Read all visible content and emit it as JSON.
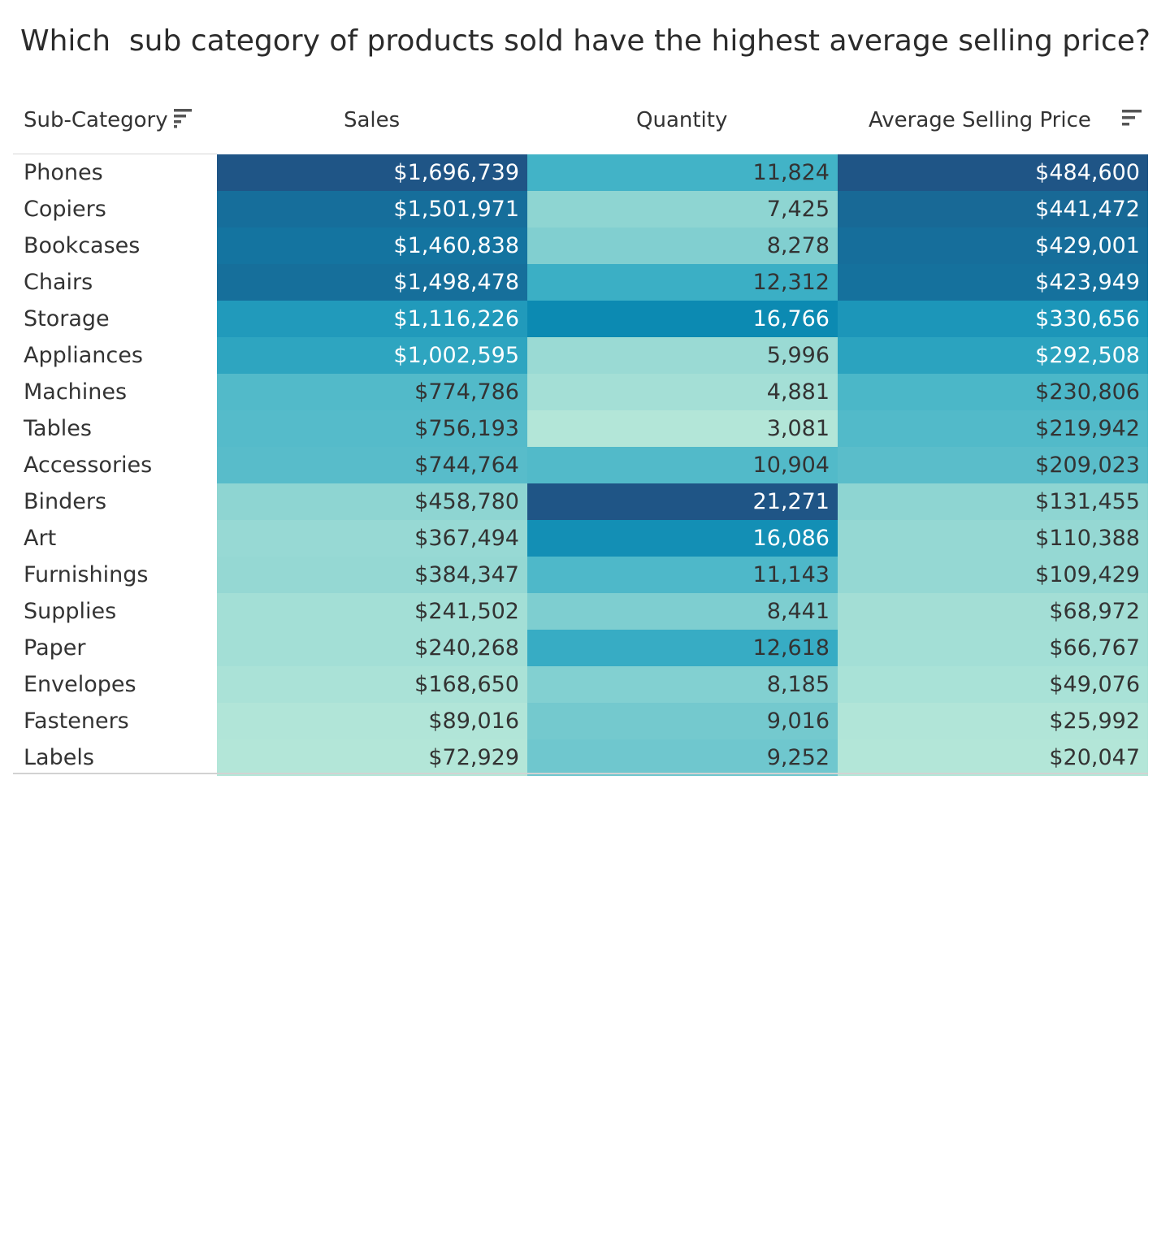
{
  "title": "Which  sub category of products sold have the highest average selling price?",
  "header": {
    "sub_category": "Sub-Category",
    "sales": "Sales",
    "quantity": "Quantity",
    "avg_price": "Average Selling Price"
  },
  "icons": {
    "sort_sub_category": "sort-descending-icon",
    "sort_avg_price": "sort-descending-icon"
  },
  "colors": {
    "scale_low": "#b3e6d8",
    "scale_high": "#1f5586",
    "text_dark": "#333333",
    "text_light": "#ffffff"
  },
  "chart_data": {
    "type": "table",
    "title": "Which  sub category of products sold have the highest average selling price?",
    "columns": [
      "Sub-Category",
      "Sales",
      "Quantity",
      "Average Selling Price"
    ],
    "sorted_by": "Average Selling Price (descending)",
    "rows": [
      {
        "name": "Phones",
        "sales": "$1,696,739",
        "quantity": "11,824",
        "asp": "$484,600",
        "sales_value": 1696739,
        "quantity_value": 11824,
        "asp_value": 484600
      },
      {
        "name": "Copiers",
        "sales": "$1,501,971",
        "quantity": "7,425",
        "asp": "$441,472",
        "sales_value": 1501971,
        "quantity_value": 7425,
        "asp_value": 441472
      },
      {
        "name": "Bookcases",
        "sales": "$1,460,838",
        "quantity": "8,278",
        "asp": "$429,001",
        "sales_value": 1460838,
        "quantity_value": 8278,
        "asp_value": 429001
      },
      {
        "name": "Chairs",
        "sales": "$1,498,478",
        "quantity": "12,312",
        "asp": "$423,949",
        "sales_value": 1498478,
        "quantity_value": 12312,
        "asp_value": 423949
      },
      {
        "name": "Storage",
        "sales": "$1,116,226",
        "quantity": "16,766",
        "asp": "$330,656",
        "sales_value": 1116226,
        "quantity_value": 16766,
        "asp_value": 330656
      },
      {
        "name": "Appliances",
        "sales": "$1,002,595",
        "quantity": "5,996",
        "asp": "$292,508",
        "sales_value": 1002595,
        "quantity_value": 5996,
        "asp_value": 292508
      },
      {
        "name": "Machines",
        "sales": "$774,786",
        "quantity": "4,881",
        "asp": "$230,806",
        "sales_value": 774786,
        "quantity_value": 4881,
        "asp_value": 230806
      },
      {
        "name": "Tables",
        "sales": "$756,193",
        "quantity": "3,081",
        "asp": "$219,942",
        "sales_value": 756193,
        "quantity_value": 3081,
        "asp_value": 219942
      },
      {
        "name": "Accessories",
        "sales": "$744,764",
        "quantity": "10,904",
        "asp": "$209,023",
        "sales_value": 744764,
        "quantity_value": 10904,
        "asp_value": 209023
      },
      {
        "name": "Binders",
        "sales": "$458,780",
        "quantity": "21,271",
        "asp": "$131,455",
        "sales_value": 458780,
        "quantity_value": 21271,
        "asp_value": 131455
      },
      {
        "name": "Art",
        "sales": "$367,494",
        "quantity": "16,086",
        "asp": "$110,388",
        "sales_value": 367494,
        "quantity_value": 16086,
        "asp_value": 110388
      },
      {
        "name": "Furnishings",
        "sales": "$384,347",
        "quantity": "11,143",
        "asp": "$109,429",
        "sales_value": 384347,
        "quantity_value": 11143,
        "asp_value": 109429
      },
      {
        "name": "Supplies",
        "sales": "$241,502",
        "quantity": "8,441",
        "asp": "$68,972",
        "sales_value": 241502,
        "quantity_value": 8441,
        "asp_value": 68972
      },
      {
        "name": "Paper",
        "sales": "$240,268",
        "quantity": "12,618",
        "asp": "$66,767",
        "sales_value": 240268,
        "quantity_value": 12618,
        "asp_value": 66767
      },
      {
        "name": "Envelopes",
        "sales": "$168,650",
        "quantity": "8,185",
        "asp": "$49,076",
        "sales_value": 168650,
        "quantity_value": 8185,
        "asp_value": 49076
      },
      {
        "name": "Fasteners",
        "sales": "$89,016",
        "quantity": "9,016",
        "asp": "$25,992",
        "sales_value": 89016,
        "quantity_value": 9016,
        "asp_value": 25992
      },
      {
        "name": "Labels",
        "sales": "$72,929",
        "quantity": "9,252",
        "asp": "$20,047",
        "sales_value": 72929,
        "quantity_value": 9252,
        "asp_value": 20047
      }
    ]
  }
}
